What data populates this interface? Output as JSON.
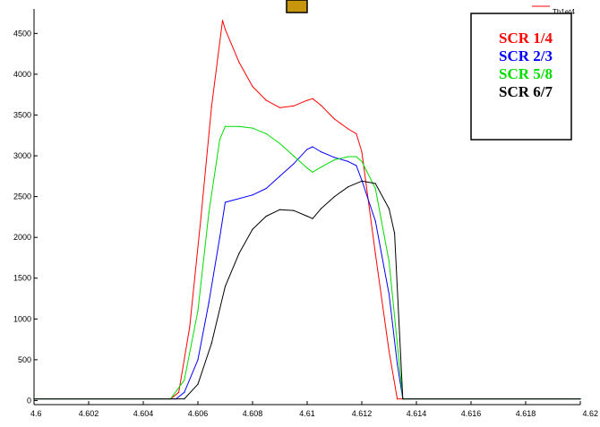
{
  "chart_data": {
    "type": "line",
    "title": "",
    "xlabel": "",
    "ylabel": "",
    "xlim": [
      4.6,
      4.62
    ],
    "ylim": [
      -50,
      4800
    ],
    "grid": false,
    "x_ticks": [
      "4.6",
      "4.602",
      "4.604",
      "4.606",
      "4.608",
      "4.61",
      "4.612",
      "4.614",
      "4.616",
      "4.618",
      "4.62"
    ],
    "y_ticks": [
      "0",
      "500",
      "1000",
      "1500",
      "2000",
      "2500",
      "3000",
      "3500",
      "4000",
      "4500"
    ],
    "top_legend_entry": "Th1et4",
    "top_legend_color": "#ff0000",
    "legend_placement": "top-right",
    "toolbar_swatch_color": "#c8960c",
    "series": [
      {
        "name": "SCR 1/4",
        "color": "#ff0000",
        "x": [
          4.6,
          4.605,
          4.6053,
          4.6057,
          4.6061,
          4.6065,
          4.6069,
          4.607,
          4.6075,
          4.608,
          4.6085,
          4.609,
          4.6095,
          4.61,
          4.6102,
          4.6105,
          4.611,
          4.6115,
          4.6118,
          4.612,
          4.6125,
          4.613,
          4.6133,
          4.6135,
          4.62
        ],
        "values": [
          20,
          20,
          100,
          900,
          2200,
          3600,
          4660,
          4550,
          4150,
          3850,
          3680,
          3590,
          3610,
          3680,
          3700,
          3620,
          3450,
          3330,
          3270,
          3050,
          1800,
          600,
          20,
          20,
          20
        ]
      },
      {
        "name": "SCR 2/3",
        "color": "#0000ff",
        "x": [
          4.6,
          4.6052,
          4.6055,
          4.606,
          4.6064,
          4.6068,
          4.607,
          4.608,
          4.6085,
          4.609,
          4.6095,
          4.61,
          4.6102,
          4.6105,
          4.611,
          4.6115,
          4.6118,
          4.612,
          4.6125,
          4.613,
          4.6133,
          4.6135,
          4.62
        ],
        "values": [
          20,
          20,
          100,
          500,
          1200,
          2000,
          2430,
          2520,
          2600,
          2750,
          2900,
          3080,
          3110,
          3050,
          2980,
          2930,
          2880,
          2700,
          2200,
          1300,
          450,
          20,
          20
        ]
      },
      {
        "name": "SCR 5/8",
        "color": "#00dd00",
        "x": [
          4.6,
          4.605,
          4.6055,
          4.606,
          4.6064,
          4.6068,
          4.607,
          4.6075,
          4.608,
          4.6085,
          4.609,
          4.6095,
          4.61,
          4.6102,
          4.6105,
          4.611,
          4.6115,
          4.6118,
          4.612,
          4.6125,
          4.613,
          4.6133,
          4.6135,
          4.62
        ],
        "values": [
          20,
          20,
          250,
          1100,
          2300,
          3200,
          3360,
          3360,
          3340,
          3270,
          3150,
          3000,
          2850,
          2800,
          2860,
          2950,
          2990,
          2990,
          2930,
          2600,
          1700,
          700,
          20,
          20
        ]
      },
      {
        "name": "SCR 6/7",
        "color": "#000000",
        "x": [
          4.6,
          4.6055,
          4.606,
          4.6065,
          4.607,
          4.6075,
          4.608,
          4.6085,
          4.609,
          4.6095,
          4.61,
          4.6102,
          4.6105,
          4.611,
          4.6115,
          4.612,
          4.6125,
          4.613,
          4.6132,
          4.6135,
          4.62
        ],
        "values": [
          20,
          20,
          200,
          700,
          1400,
          1800,
          2100,
          2260,
          2340,
          2330,
          2260,
          2230,
          2350,
          2500,
          2620,
          2690,
          2660,
          2350,
          2050,
          20,
          20
        ]
      }
    ]
  }
}
